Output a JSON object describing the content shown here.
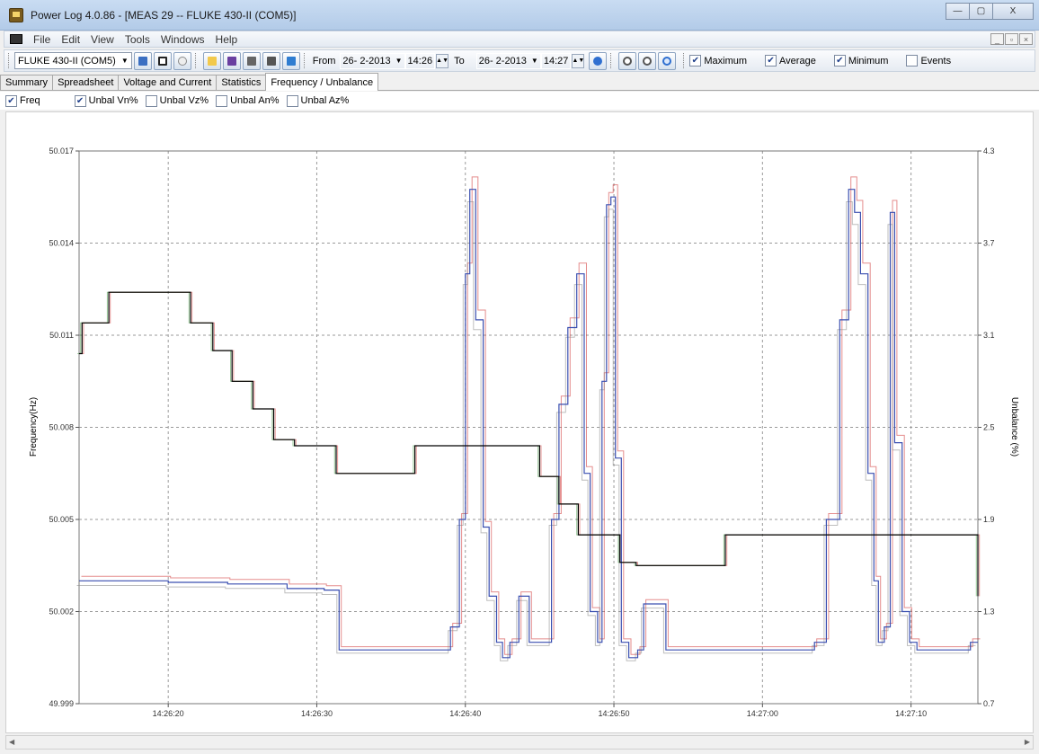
{
  "window": {
    "title": "Power Log 4.0.86 - [MEAS 29 -- FLUKE 430-II (COM5)]",
    "minimize": "—",
    "maximize": "▢",
    "close": "X"
  },
  "menu": {
    "items": [
      "File",
      "Edit",
      "View",
      "Tools",
      "Windows",
      "Help"
    ]
  },
  "mdi": {
    "minimize": "_",
    "restore": "▫",
    "close": "×"
  },
  "toolbar": {
    "device": "FLUKE 430-II (COM5)",
    "from_label": "From",
    "from_date": "26- 2-2013",
    "from_time": "14:26",
    "to_label": "To",
    "to_date": "26- 2-2013",
    "to_time": "14:27",
    "checks": [
      {
        "label": "Maximum",
        "checked": true
      },
      {
        "label": "Average",
        "checked": true
      },
      {
        "label": "Minimum",
        "checked": true
      },
      {
        "label": "Events",
        "checked": false
      }
    ]
  },
  "tabs": [
    "Summary",
    "Spreadsheet",
    "Voltage and Current",
    "Statistics",
    "Frequency / Unbalance"
  ],
  "active_tab": 4,
  "options": [
    {
      "label": "Freq",
      "checked": true
    },
    {
      "label": "Unbal Vn%",
      "checked": true
    },
    {
      "label": "Unbal Vz%",
      "checked": false
    },
    {
      "label": "Unbal An%",
      "checked": false
    },
    {
      "label": "Unbal Az%",
      "checked": false
    }
  ],
  "chart_data": {
    "type": "line",
    "ylabel": "Frequency(Hz)",
    "y2label": "Unbalance (%)",
    "y_ticks": [
      "50.017",
      "50.014",
      "50.011",
      "50.008",
      "50.005",
      "50.002",
      "49.999"
    ],
    "y2_ticks": [
      "4.3",
      "3.7",
      "3.1",
      "2.5",
      "1.9",
      "1.3",
      "0.7"
    ],
    "ylim": [
      49.999,
      50.017
    ],
    "y2lim": [
      0.7,
      4.3
    ],
    "x_ticks": [
      "14:26:20",
      "14:26:30",
      "14:26:40",
      "14:26:50",
      "14:27:00",
      "14:27:10"
    ],
    "xlim_seconds": [
      14,
      74.5
    ],
    "grid": true,
    "colors": {
      "freq": "#000000",
      "unbal": "#3a4fb0",
      "max": "#d03030",
      "min": "#2a8a2a"
    },
    "series": [
      {
        "x": [
          14,
          14.2,
          16,
          18.5,
          21.5,
          23,
          24.3,
          25.7,
          27.1,
          28.5,
          31.3,
          35.5,
          36.6,
          43,
          45,
          46.3,
          47.6,
          48.5,
          50.4,
          51.5,
          54.5,
          57.5,
          59.9,
          60.4,
          64,
          74.5
        ],
        "y": [
          50.0104,
          50.0114,
          50.0124,
          50.0124,
          50.0114,
          50.0105,
          50.0095,
          50.0086,
          50.0076,
          50.0074,
          50.0065,
          50.0065,
          50.0074,
          50.0074,
          50.0064,
          50.0055,
          50.0045,
          50.0045,
          50.0036,
          50.0035,
          50.0035,
          50.0045,
          50.0045,
          50.0045,
          50.0045,
          50.0025
        ]
      },
      {
        "x": [
          14,
          20,
          24,
          28,
          30.5,
          31.5,
          37,
          39,
          39.6,
          40,
          40.3,
          40.7,
          41.2,
          41.6,
          42.1,
          42.5,
          43,
          43.6,
          44.3,
          45.2,
          45.8,
          46.3,
          46.9,
          47.5,
          48,
          48.4,
          48.9,
          49.2,
          49.5,
          49.8,
          50.1,
          50.5,
          51,
          51.6,
          52,
          53.5,
          54.6,
          55.4,
          56,
          59,
          62,
          63.5,
          64.3,
          65.2,
          65.8,
          66.2,
          66.6,
          67.1,
          67.5,
          67.8,
          68.2,
          68.6,
          68.9,
          69.4,
          69.9,
          70.4,
          70.9,
          71.5,
          72.4,
          73.3,
          74,
          74.5
        ],
        "y": [
          1.5,
          1.49,
          1.48,
          1.45,
          1.44,
          1.05,
          1.05,
          1.2,
          1.9,
          3.5,
          4.05,
          3.2,
          1.85,
          1.4,
          1.1,
          1.0,
          1.1,
          1.4,
          1.1,
          1.1,
          1.9,
          2.65,
          3.15,
          3.5,
          2.2,
          1.3,
          1.1,
          2.8,
          3.95,
          4.0,
          2.3,
          1.1,
          1.0,
          1.05,
          1.35,
          1.05,
          1.05,
          1.05,
          1.05,
          1.05,
          1.05,
          1.1,
          1.9,
          3.2,
          4.05,
          3.9,
          3.5,
          2.2,
          1.5,
          1.1,
          1.2,
          3.9,
          2.4,
          1.3,
          1.1,
          1.05,
          1.05,
          1.05,
          1.05,
          1.05,
          1.1,
          1.1
        ]
      }
    ]
  }
}
